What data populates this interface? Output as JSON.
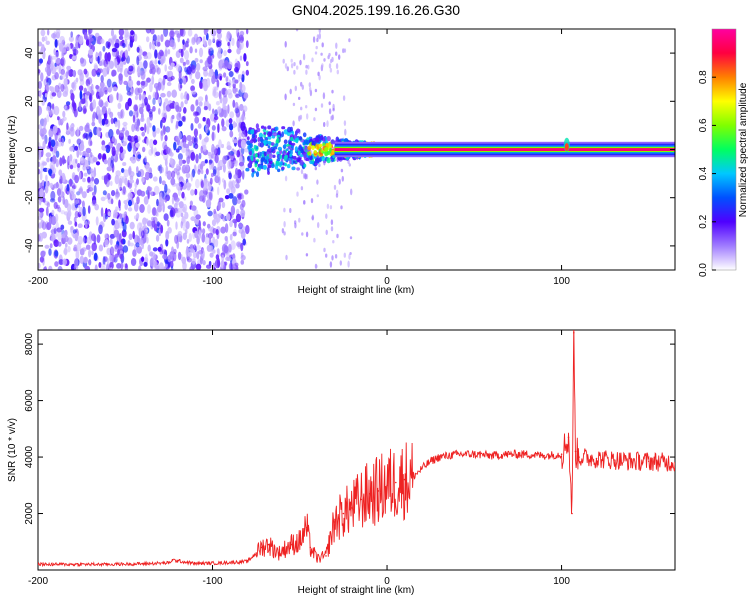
{
  "title": "GN04.2025.199.16.26.G30",
  "chart_data": [
    {
      "type": "heatmap",
      "xlabel": "Height of straight line (km)",
      "ylabel": "Frequency (Hz)",
      "xlim": [
        -200,
        165
      ],
      "ylim": [
        -50,
        50
      ],
      "xticks": [
        -200,
        -100,
        0,
        100
      ],
      "yticks": [
        -40,
        -20,
        0,
        20,
        40
      ],
      "colorbar": {
        "label": "Normalized spectral amplitude",
        "range": [
          0.0,
          1.0
        ],
        "ticks": [
          0.0,
          0.2,
          0.4,
          0.6,
          0.8
        ],
        "colors": [
          "#ffffff",
          "#a07cff",
          "#4f00ff",
          "#0050ff",
          "#00c8ff",
          "#00ff60",
          "#80ff00",
          "#ffff00",
          "#ff8000",
          "#ff0040",
          "#ff00a0"
        ]
      },
      "features": {
        "noise_region_x": [
          -200,
          -80
        ],
        "transition_region_x": [
          -80,
          10
        ],
        "stable_line_x": [
          10,
          165
        ],
        "stable_line_freq": 0,
        "spike_x": 103
      }
    },
    {
      "type": "line",
      "xlabel": "Height of straight line (km)",
      "ylabel": "SNR (10 * v/v)",
      "xlim": [
        -200,
        165
      ],
      "ylim": [
        0,
        8500
      ],
      "xticks": [
        -200,
        -100,
        0,
        100
      ],
      "yticks": [
        2000,
        4000,
        6000,
        8000
      ],
      "color": "#ee2222",
      "x": [
        -200,
        -180,
        -160,
        -140,
        -125,
        -123,
        -110,
        -95,
        -80,
        -75,
        -72,
        -68,
        -62,
        -55,
        -50,
        -46,
        -44,
        -40,
        -35,
        -30,
        -25,
        -20,
        -15,
        -10,
        -5,
        0,
        5,
        10,
        15,
        20,
        25,
        30,
        40,
        50,
        60,
        70,
        80,
        90,
        100,
        104,
        106,
        107,
        108,
        110,
        120,
        130,
        140,
        150,
        165
      ],
      "y": [
        200,
        200,
        200,
        220,
        250,
        350,
        230,
        250,
        300,
        600,
        800,
        900,
        600,
        900,
        1000,
        1500,
        800,
        400,
        500,
        1700,
        2000,
        2200,
        2500,
        2700,
        2800,
        3000,
        3100,
        3200,
        3300,
        3600,
        3850,
        4000,
        4100,
        4100,
        4050,
        4100,
        4100,
        4050,
        4100,
        4700,
        2000,
        8400,
        4200,
        4000,
        3950,
        3900,
        3850,
        3850,
        3800
      ]
    }
  ]
}
